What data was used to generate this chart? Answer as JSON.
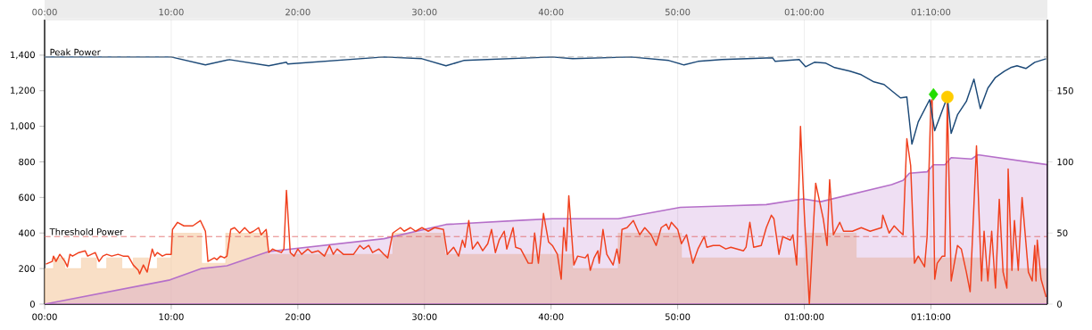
{
  "chart_data": {
    "type": "line",
    "xlim": [
      0,
      79.2
    ],
    "xticks": [
      {
        "value": 0,
        "label": "00:00"
      },
      {
        "value": 10,
        "label": "10:00"
      },
      {
        "value": 20,
        "label": "20:00"
      },
      {
        "value": 30,
        "label": "30:00"
      },
      {
        "value": 40,
        "label": "40:00"
      },
      {
        "value": 50,
        "label": "50:00"
      },
      {
        "value": 60,
        "label": "01:00:00"
      },
      {
        "value": 70,
        "label": "01:10:00"
      }
    ],
    "x2lim": [
      0,
      79.2
    ],
    "x2ticks": [
      {
        "value": 0,
        "label": "00:00"
      },
      {
        "value": 10,
        "label": "10:00"
      },
      {
        "value": 20,
        "label": "20:00"
      },
      {
        "value": 30,
        "label": "30:00"
      },
      {
        "value": 40,
        "label": "40:00"
      },
      {
        "value": 50,
        "label": "50:00"
      },
      {
        "value": 60,
        "label": "01:00:00"
      },
      {
        "value": 70,
        "label": "01:10:00"
      }
    ],
    "ylim": [
      0,
      1600
    ],
    "yticks": [
      0,
      200,
      400,
      600,
      800,
      {
        "value": 1000,
        "label": "1,000"
      },
      {
        "value": 1200,
        "label": "1,200"
      },
      {
        "value": 1400,
        "label": "1,400"
      }
    ],
    "y2lim": [
      0,
      200
    ],
    "y2ticks": [
      0,
      50,
      100,
      150
    ],
    "grid": "x",
    "series": [
      {
        "type": "area",
        "color": "#f5c9a0",
        "x": [
          0,
          0.7,
          0.7,
          1.6,
          1.6,
          2.9,
          2.9,
          4.1,
          4.1,
          4.9,
          4.9,
          6.1,
          6.1,
          7.0,
          7.0,
          8.2,
          8.2,
          8.9,
          8.9,
          10.0,
          10.0,
          12.4,
          12.4,
          14.3,
          14.3,
          17.6,
          17.6,
          27.5,
          27.5,
          31.6,
          31.6,
          41.7,
          41.7,
          45.3,
          45.3,
          50.3,
          50.3,
          60.1,
          60.1,
          64.1,
          64.1,
          74.0,
          74.0,
          79.2
        ],
        "values": [
          200,
          200,
          260,
          260,
          200,
          200,
          260,
          260,
          200,
          200,
          260,
          260,
          200,
          200,
          260,
          260,
          200,
          200,
          260,
          260,
          400,
          400,
          230,
          230,
          400,
          400,
          280,
          280,
          400,
          400,
          280,
          280,
          200,
          200,
          400,
          400,
          260,
          260,
          400,
          400,
          260,
          260,
          200,
          200
        ]
      },
      {
        "type": "area",
        "axis": "y2",
        "color": "#b56fc9",
        "x": [
          0,
          9.9,
          12.4,
          14.4,
          17.7,
          26.8,
          31.7,
          37.8,
          40.1,
          45.3,
          50.2,
          53.5,
          57.0,
          59.9,
          61.3,
          66.9,
          67.8,
          68.3,
          69.7,
          70.2,
          71.1,
          71.6,
          73.2,
          73.7,
          79.2
        ],
        "values": [
          0,
          17,
          25,
          27,
          37,
          46,
          56,
          59,
          60,
          60,
          68,
          69,
          70,
          74,
          72,
          84,
          87,
          92,
          93,
          98,
          98,
          103,
          102,
          105,
          98
        ]
      },
      {
        "color": "#f0401e",
        "marker": "none",
        "x": [
          0.1,
          0.6,
          0.7,
          0.9,
          1.2,
          1.6,
          1.8,
          2.0,
          2.2,
          2.7,
          3.2,
          3.4,
          4.0,
          4.3,
          4.6,
          4.9,
          5.3,
          5.8,
          6.2,
          6.6,
          7.0,
          7.4,
          7.5,
          7.8,
          8.1,
          8.5,
          8.7,
          8.9,
          9.3,
          9.6,
          10.0,
          10.1,
          10.5,
          11.0,
          11.7,
          12.3,
          12.7,
          12.9,
          13.4,
          13.6,
          13.9,
          14.2,
          14.4,
          14.7,
          15.0,
          15.4,
          15.8,
          16.2,
          16.5,
          16.9,
          17.1,
          17.5,
          17.7,
          18.0,
          18.3,
          18.7,
          18.9,
          19.1,
          19.4,
          19.7,
          20.0,
          20.3,
          20.8,
          21.1,
          21.6,
          22.1,
          22.5,
          22.8,
          23.1,
          23.6,
          24.1,
          24.4,
          24.9,
          25.2,
          25.6,
          25.9,
          26.4,
          26.8,
          27.1,
          27.5,
          28.1,
          28.4,
          28.9,
          29.3,
          29.8,
          30.3,
          30.8,
          31.5,
          31.8,
          32.3,
          32.7,
          33.0,
          33.2,
          33.5,
          33.8,
          34.2,
          34.6,
          35.0,
          35.3,
          35.6,
          35.9,
          36.3,
          36.5,
          37.0,
          37.2,
          37.6,
          38.2,
          38.5,
          38.7,
          39.0,
          39.4,
          39.8,
          40.1,
          40.5,
          40.8,
          41.0,
          41.2,
          41.4,
          41.8,
          42.1,
          42.7,
          42.9,
          43.1,
          43.4,
          43.7,
          43.8,
          44.1,
          44.4,
          44.9,
          45.2,
          45.4,
          45.6,
          46.0,
          46.5,
          47.0,
          47.4,
          47.9,
          48.3,
          48.7,
          49.1,
          49.3,
          49.5,
          50.0,
          50.3,
          50.7,
          51.2,
          51.6,
          52.1,
          52.3,
          52.8,
          53.3,
          53.8,
          54.2,
          55.2,
          55.4,
          55.7,
          56.0,
          56.6,
          57.0,
          57.4,
          57.6,
          58.0,
          58.3,
          58.9,
          59.1,
          59.4,
          59.7,
          60.0,
          60.4,
          60.9,
          61.5,
          61.8,
          62.0,
          62.3,
          62.8,
          63.1,
          63.8,
          64.5,
          65.2,
          66.1,
          66.2,
          66.7,
          67.1,
          67.5,
          67.8,
          68.1,
          68.4,
          68.7,
          69.0,
          69.5,
          69.7,
          70.0,
          70.1,
          70.3,
          70.5,
          70.9,
          71.1,
          71.3,
          71.6,
          72.1,
          72.4,
          72.8,
          73.1,
          73.6,
          74.0,
          74.2,
          74.5,
          74.8,
          75.1,
          75.4,
          75.7,
          76.0,
          76.1,
          76.4,
          76.6,
          76.9,
          77.2,
          77.7,
          78.0,
          78.2,
          78.3,
          78.4,
          78.7,
          79.1
        ],
        "values": [
          225,
          240,
          270,
          240,
          280,
          240,
          210,
          280,
          270,
          290,
          300,
          270,
          290,
          240,
          270,
          280,
          270,
          280,
          270,
          270,
          220,
          190,
          170,
          220,
          180,
          310,
          270,
          290,
          270,
          280,
          280,
          420,
          460,
          440,
          440,
          470,
          410,
          240,
          260,
          250,
          270,
          260,
          270,
          420,
          430,
          400,
          430,
          400,
          410,
          430,
          390,
          420,
          290,
          310,
          300,
          290,
          310,
          640,
          290,
          270,
          310,
          280,
          310,
          290,
          300,
          270,
          330,
          280,
          310,
          280,
          280,
          280,
          330,
          310,
          330,
          290,
          310,
          280,
          260,
          400,
          430,
          410,
          430,
          410,
          430,
          410,
          430,
          420,
          280,
          320,
          270,
          360,
          320,
          470,
          310,
          350,
          300,
          340,
          420,
          290,
          360,
          410,
          310,
          430,
          320,
          310,
          230,
          230,
          400,
          230,
          510,
          350,
          330,
          280,
          140,
          430,
          300,
          610,
          220,
          270,
          260,
          280,
          190,
          260,
          300,
          230,
          420,
          280,
          220,
          310,
          230,
          420,
          430,
          470,
          390,
          430,
          390,
          330,
          430,
          450,
          420,
          460,
          420,
          340,
          390,
          230,
          310,
          380,
          320,
          330,
          330,
          310,
          320,
          300,
          320,
          460,
          320,
          330,
          430,
          500,
          480,
          280,
          380,
          360,
          390,
          220,
          1000,
          510,
          0,
          680,
          480,
          330,
          700,
          390,
          460,
          410,
          410,
          430,
          410,
          430,
          500,
          400,
          440,
          410,
          390,
          930,
          780,
          230,
          270,
          210,
          380,
          1140,
          1150,
          140,
          230,
          270,
          270,
          1150,
          130,
          330,
          310,
          180,
          70,
          890,
          130,
          410,
          130,
          410,
          90,
          590,
          180,
          90,
          760,
          190,
          470,
          190,
          600,
          180,
          130,
          330,
          130,
          360,
          140,
          40
        ]
      },
      {
        "color": "#1d4a78",
        "marker": "none",
        "x": [
          0,
          10.0,
          12.7,
          14.6,
          17.7,
          19.1,
          19.2,
          26.8,
          29.8,
          31.7,
          33.1,
          40.1,
          41.7,
          46.3,
          49.3,
          50.5,
          51.6,
          53.5,
          57.5,
          57.7,
          59.6,
          60.1,
          60.8,
          61.7,
          62.4,
          63.6,
          64.5,
          65.5,
          66.3,
          66.9,
          67.6,
          68.1,
          68.5,
          69.0,
          69.9,
          70.3,
          71.3,
          71.6,
          72.1,
          72.8,
          73.4,
          73.9,
          74.5,
          75.1,
          75.8,
          76.3,
          76.8,
          77.5,
          78.2,
          79.1
        ],
        "values": [
          1390,
          1390,
          1345,
          1375,
          1340,
          1360,
          1350,
          1390,
          1380,
          1340,
          1370,
          1390,
          1380,
          1390,
          1370,
          1345,
          1365,
          1375,
          1385,
          1365,
          1375,
          1335,
          1360,
          1355,
          1330,
          1310,
          1290,
          1250,
          1235,
          1200,
          1160,
          1165,
          900,
          1025,
          1150,
          975,
          1165,
          960,
          1065,
          1140,
          1265,
          1100,
          1215,
          1275,
          1310,
          1330,
          1340,
          1325,
          1360,
          1380
        ]
      },
      {
        "type": "scatter",
        "color": "#22dd00",
        "marker": "diamond",
        "x": [
          70.2
        ],
        "values": [
          1180
        ]
      },
      {
        "type": "scatter",
        "color": "#ffcc00",
        "marker": "circle",
        "x": [
          71.3
        ],
        "values": [
          1165
        ]
      }
    ],
    "ref_lines": [
      {
        "axis": "y",
        "value": 1390,
        "label": "Peak Power",
        "color": "#999999",
        "line_style": "dashed"
      },
      {
        "axis": "y",
        "value": 380,
        "label": "Threshold Power",
        "color": "#e06060",
        "line_style": "dashed"
      }
    ]
  }
}
